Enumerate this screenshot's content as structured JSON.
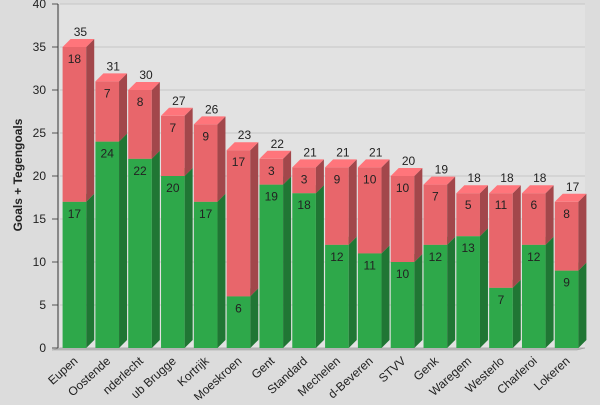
{
  "chart_data": {
    "type": "bar",
    "stacked": true,
    "ylabel": "Goals + Tegengoals",
    "xlabel": "",
    "ylim": [
      0,
      40
    ],
    "yticks": [
      0,
      5,
      10,
      15,
      20,
      25,
      30,
      35,
      40
    ],
    "grid": true,
    "categories": [
      "Eupen",
      "Oostende",
      "Anderlecht",
      "Club Brugge",
      "Kortrijk",
      "Moeskroen",
      "Gent",
      "Standard",
      "Mechelen",
      "Waasland-Beveren",
      "STVV",
      "Genk",
      "Waregem",
      "Westerlo",
      "Charleroi",
      "Lokeren"
    ],
    "category_labels_visible": [
      "Eupen",
      "Oostende",
      "nderlecht",
      "ub Brugge",
      "Kortrijk",
      "Moeskroen",
      "Gent",
      "Standard",
      "Mechelen",
      "d-Beveren",
      "STVV",
      "Genk",
      "Waregem",
      "Westerlo",
      "Charleroi",
      "Lokeren"
    ],
    "series": [
      {
        "values": [
          17,
          24,
          22,
          20,
          17,
          6,
          19,
          18,
          12,
          11,
          10,
          12,
          13,
          7,
          12,
          9
        ],
        "color": "#2ea84a"
      },
      {
        "values": [
          18,
          7,
          8,
          7,
          9,
          17,
          3,
          3,
          9,
          10,
          10,
          7,
          5,
          11,
          6,
          8
        ],
        "color": "#e8666b"
      }
    ],
    "totals": [
      35,
      31,
      30,
      27,
      26,
      23,
      22,
      21,
      21,
      21,
      20,
      19,
      18,
      18,
      18,
      17
    ]
  }
}
